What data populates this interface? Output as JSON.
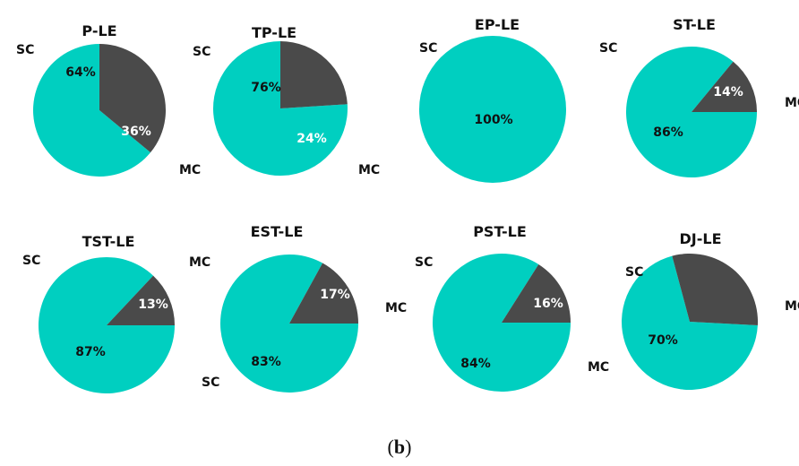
{
  "colors": {
    "sc": "#00cfc0",
    "mc": "#4a4a4a",
    "pct_on_sc": "#111111",
    "pct_on_mc": "#ffffff"
  },
  "caption": {
    "open": "(",
    "letter": "b",
    "close": ")"
  },
  "chart_data": [
    {
      "type": "pie",
      "title": "P-LE",
      "slices": [
        {
          "label": "SC",
          "value": 64,
          "text": "64%"
        },
        {
          "label": "MC",
          "value": 36,
          "text": "36%"
        }
      ]
    },
    {
      "type": "pie",
      "title": "TP-LE",
      "slices": [
        {
          "label": "SC",
          "value": 76,
          "text": "76%"
        },
        {
          "label": "MC",
          "value": 24,
          "text": "24%"
        }
      ]
    },
    {
      "type": "pie",
      "title": "EP-LE",
      "slices": [
        {
          "label": "SC",
          "value": 100,
          "text": "100%"
        }
      ]
    },
    {
      "type": "pie",
      "title": "ST-LE",
      "slices": [
        {
          "label": "SC",
          "value": 86,
          "text": "86%"
        },
        {
          "label": "MC",
          "value": 14,
          "text": "14%"
        }
      ]
    },
    {
      "type": "pie",
      "title": "TST-LE",
      "slices": [
        {
          "label": "SC",
          "value": 87,
          "text": "87%"
        },
        {
          "label": "MC",
          "value": 13,
          "text": "13%"
        }
      ]
    },
    {
      "type": "pie",
      "title": "EST-LE",
      "slices": [
        {
          "label": "SC",
          "value": 83,
          "text": "83%"
        },
        {
          "label": "MC",
          "value": 17,
          "text": "17%"
        }
      ]
    },
    {
      "type": "pie",
      "title": "PST-LE",
      "slices": [
        {
          "label": "SC",
          "value": 84,
          "text": "84%"
        },
        {
          "label": "MC",
          "value": 16,
          "text": "16%"
        }
      ]
    },
    {
      "type": "pie",
      "title": "DJ-LE",
      "slices": [
        {
          "label": "SC",
          "value": 70,
          "text": "70%"
        },
        {
          "label": "MC",
          "value": 30,
          "text": ""
        }
      ]
    }
  ]
}
